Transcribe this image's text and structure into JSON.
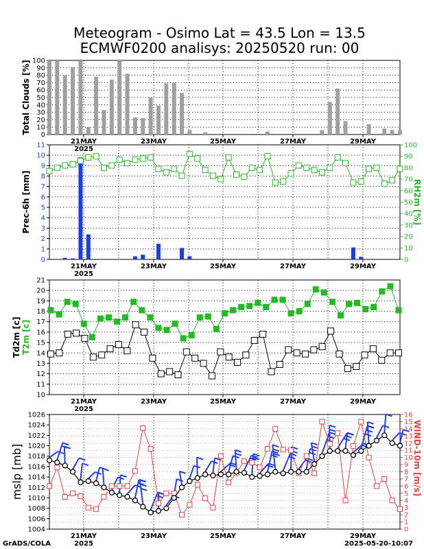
{
  "title": {
    "line1": "Meteogram - Osimo Lat = 43.5 Lon = 13.5",
    "line2": "ECMWF0200 analisys: 20250520 run: 00"
  },
  "footer": {
    "left": "GrADS/COLA",
    "right": "2025-05-20-10:07"
  },
  "colors": {
    "bars_gray": "#a0a0a0",
    "precip_blue": "#1a3fe0",
    "rh_green": "#22bb22",
    "t2m_green": "#22bb22",
    "wind_red": "#e84040",
    "barbs_blue": "#2040e0",
    "mslp_black": "#000000"
  },
  "chart_data": [
    {
      "type": "bar",
      "panel": "clouds",
      "ylabel": "Total Clouds [%]",
      "ylim": [
        0,
        100
      ],
      "yticks": [
        0,
        10,
        20,
        30,
        40,
        50,
        60,
        70,
        80,
        90,
        100
      ],
      "x_labels": [
        "21MAY",
        "23MAY",
        "25MAY",
        "27MAY",
        "29MAY"
      ],
      "x_sub": "2025",
      "step_hours": 6,
      "values": [
        100,
        100,
        80,
        91,
        100,
        10,
        78,
        33,
        74,
        100,
        82,
        23,
        22,
        50,
        39,
        69,
        70,
        56,
        6,
        0,
        3,
        0,
        0,
        0,
        0,
        0,
        0,
        0,
        4,
        0,
        0,
        0,
        0,
        0,
        0,
        6,
        44,
        62,
        18,
        0,
        0,
        14,
        0,
        8,
        6,
        6
      ]
    },
    {
      "type": "bar+line",
      "panel": "precip_rh",
      "ylabel": "Prec-6h [mm]",
      "y2label": "RH2m [%]",
      "ylim": [
        0,
        11
      ],
      "yticks": [
        0,
        1,
        2,
        3,
        4,
        5,
        6,
        7,
        8,
        9,
        10,
        11
      ],
      "y2lim": [
        0,
        100
      ],
      "y2ticks": [
        0,
        10,
        20,
        30,
        40,
        50,
        60,
        70,
        80,
        90,
        100
      ],
      "x_labels": [
        "21MAY",
        "23MAY",
        "25MAY",
        "27MAY",
        "29MAY"
      ],
      "x_sub": "2025",
      "precip": [
        0,
        0,
        0.15,
        0.1,
        9.8,
        2.4,
        0,
        0,
        0,
        0,
        0,
        0.3,
        0.45,
        0,
        1.5,
        0,
        0,
        1.1,
        0.3,
        0,
        0,
        0,
        0,
        0,
        0,
        0,
        0,
        0,
        0,
        0,
        0,
        0,
        0,
        0,
        0,
        0,
        0,
        0,
        0,
        1.15,
        0.25,
        0,
        0,
        0,
        0,
        0
      ],
      "rh": [
        77,
        80,
        82,
        83,
        86,
        89,
        90,
        80,
        82,
        87,
        84,
        87,
        88,
        89,
        79,
        76,
        79,
        73,
        92,
        88,
        78,
        73,
        70,
        89,
        74,
        72,
        80,
        78,
        90,
        67,
        68,
        75,
        82,
        80,
        78,
        76,
        80,
        89,
        84,
        67,
        68,
        79,
        80,
        66,
        69,
        79
      ]
    },
    {
      "type": "line",
      "panel": "temperature",
      "ylabel": "Td2m [c]",
      "ylabel2": "T2m [c]",
      "ylim": [
        10,
        21
      ],
      "yticks": [
        10,
        11,
        12,
        13,
        14,
        15,
        16,
        17,
        18,
        19,
        20,
        21
      ],
      "x_labels": [
        "21MAY",
        "23MAY",
        "25MAY",
        "27MAY",
        "29MAY"
      ],
      "x_sub": "2025",
      "series": [
        {
          "name": "T2m",
          "values": [
            18.1,
            17.7,
            18.9,
            18.7,
            16.8,
            15.5,
            17.3,
            17.4,
            17.0,
            17.4,
            18.9,
            18.1,
            17.4,
            16.4,
            16.2,
            16.8,
            15.4,
            15.7,
            17.4,
            17.5,
            16.3,
            17.8,
            18.1,
            18.4,
            18.5,
            18.8,
            18.4,
            19.1,
            19.1,
            17.8,
            18.0,
            18.7,
            20.1,
            19.8,
            18.9,
            17.6,
            18.7,
            18.8,
            18.2,
            18.4,
            19.9,
            20.4,
            18.1
          ]
        },
        {
          "name": "Td2m",
          "values": [
            13.9,
            14.0,
            15.8,
            15.9,
            15.4,
            13.6,
            13.8,
            14.4,
            14.8,
            14.2,
            16.7,
            16.0,
            13.5,
            12.0,
            12.2,
            11.9,
            14.1,
            13.5,
            13.0,
            11.8,
            14.1,
            13.6,
            13.1,
            13.8,
            15.2,
            15.8,
            12.2,
            12.9,
            14.3,
            14.0,
            13.9,
            14.3,
            14.6,
            16.1,
            13.9,
            12.5,
            12.7,
            13.8,
            14.4,
            13.3,
            14.0,
            14.0
          ]
        }
      ]
    },
    {
      "type": "line",
      "panel": "mslp_wind",
      "ylabel": "mslp [mb]",
      "y2label": "WIND-10m [m/s]",
      "ylim": [
        1004,
        1026
      ],
      "yticks": [
        1004,
        1006,
        1008,
        1010,
        1012,
        1014,
        1016,
        1018,
        1020,
        1022,
        1024,
        1026
      ],
      "y2lim": [
        0,
        16
      ],
      "y2ticks": [
        0,
        1,
        2,
        3,
        4,
        5,
        6,
        7,
        8,
        9,
        10,
        11,
        12,
        13,
        14,
        15,
        16
      ],
      "x_labels": [
        "21MAY",
        "23MAY",
        "25MAY",
        "27MAY",
        "29MAY"
      ],
      "x_sub": "2025",
      "mslp": [
        1017.2,
        1016.8,
        1016.2,
        1015.0,
        1013.0,
        1013.2,
        1012.8,
        1012.0,
        1011.0,
        1010.5,
        1010.2,
        1009.5,
        1008.3,
        1007.2,
        1007.5,
        1008.0,
        1010.0,
        1012.0,
        1013.2,
        1013.8,
        1014.5,
        1014.3,
        1014.5,
        1014.5,
        1015.0,
        1014.8,
        1014.0,
        1014.2,
        1014.5,
        1015.0,
        1014.7,
        1015.0,
        1015.0,
        1015.0,
        1016.5,
        1018.0,
        1019.0,
        1019.0,
        1019.0,
        1018.2,
        1019.0,
        1020.0,
        1021.0,
        1022.0,
        1020.5,
        1020.0
      ],
      "wind10m": [
        6.0,
        8.6,
        4.5,
        5.0,
        4.6,
        3.0,
        2.8,
        4.5,
        6.0,
        6.0,
        6.0,
        8.1,
        14.1,
        11.2,
        3.6,
        5.0,
        5.0,
        2.0,
        3.4,
        6.2,
        4.3,
        3.0,
        10.2,
        6.5,
        7.8,
        9.5,
        9.3,
        8.6,
        11.2,
        14.0,
        11.1,
        11.0,
        7.8,
        10.2,
        7.8,
        15.0,
        11.9,
        13.4,
        4.0,
        11.6,
        15.0,
        10.0,
        6.0,
        7.0,
        4.0,
        2.8
      ]
    }
  ]
}
